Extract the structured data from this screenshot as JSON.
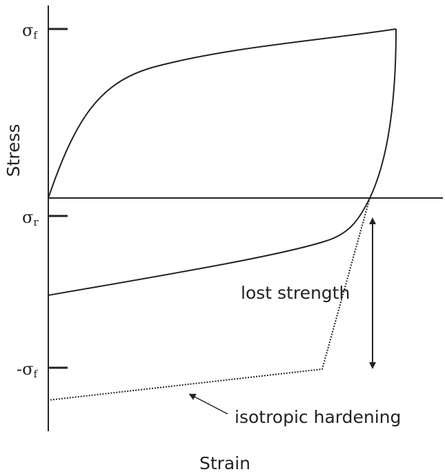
{
  "diagram": {
    "y_axis_label": "Stress",
    "x_axis_label": "Strain",
    "ticks": {
      "sigma_f": {
        "symbol": "σ",
        "sub": "f",
        "prefix": ""
      },
      "sigma_r": {
        "symbol": "σ",
        "sub": "r",
        "prefix": ""
      },
      "neg_sigma_f": {
        "symbol": "σ",
        "sub": "f",
        "prefix": "-"
      }
    },
    "annotations": {
      "lost_strength": "lost strength",
      "isotropic_hardening": "isotropic hardening"
    },
    "colors": {
      "curve": "#222222",
      "axis": "#222222",
      "dotted": "#222222"
    }
  }
}
